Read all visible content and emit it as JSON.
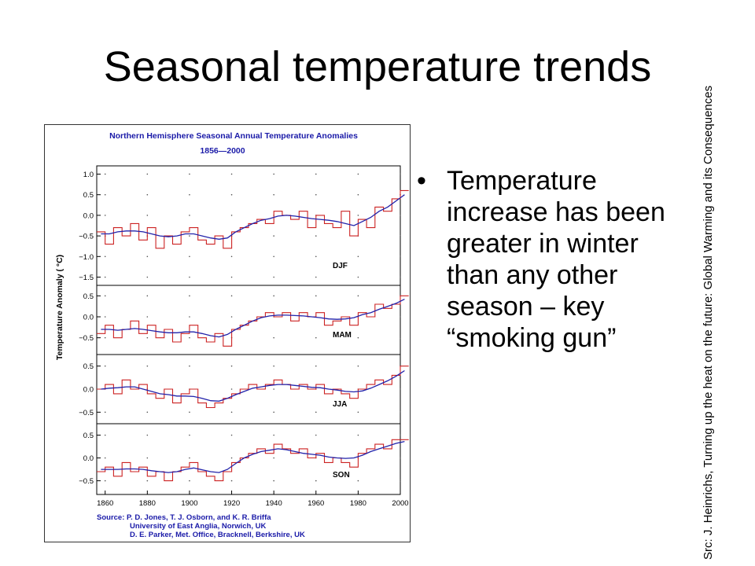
{
  "slide": {
    "title": "Seasonal temperature trends",
    "bullet_symbol": "•",
    "bullet": "Temperature increase has been greater in winter than any other season – key “smoking gun”",
    "source_note": "Src: J. Heinrichs, Turning up the heat on the future: Global Warming and its Consequences"
  },
  "chart_data": {
    "type": "line",
    "title": "Northern Hemisphere Seasonal Annual Temperature Anomalies",
    "subtitle": "1856—2000",
    "ylabel": "Temperature Anomaly ( °C)",
    "xlabel": "",
    "xlim": [
      1856,
      2000
    ],
    "x_ticks": [
      1860,
      1880,
      1900,
      1920,
      1940,
      1960,
      1980,
      2000
    ],
    "x_tick_labels": [
      "1860",
      "1880",
      "1900",
      "1920",
      "1940",
      "1960",
      "1980",
      "2000"
    ],
    "source": [
      "Source:  P. D. Jones,  T. J. Osborn,  and  K. R. Briffa",
      "University of East Anglia, Norwich, UK",
      "D. E. Parker, Met. Office, Bracknell, Berkshire, UK"
    ],
    "colors": {
      "annual_steps": "#cc2222",
      "smoothed": "#2222aa",
      "title": "#1a1aa8",
      "source": "#1a1aa8"
    },
    "panels": [
      {
        "label": "DJF",
        "ylim": [
          -1.7,
          1.2
        ],
        "y_ticks": [
          1.0,
          0.5,
          0.0,
          -0.5,
          -1.0,
          -1.5
        ],
        "y_tick_labels": [
          "1.0",
          "0.5",
          "0.0",
          "−0.5",
          "−1.0",
          "−1.5"
        ],
        "x": [
          1856,
          1860,
          1864,
          1868,
          1872,
          1876,
          1880,
          1884,
          1888,
          1892,
          1896,
          1900,
          1904,
          1908,
          1912,
          1916,
          1920,
          1924,
          1928,
          1932,
          1936,
          1940,
          1944,
          1948,
          1952,
          1956,
          1960,
          1964,
          1968,
          1972,
          1976,
          1980,
          1984,
          1988,
          1992,
          1996,
          2000
        ],
        "annual": [
          -0.4,
          -0.7,
          -0.3,
          -0.5,
          -0.2,
          -0.6,
          -0.3,
          -0.8,
          -0.5,
          -0.7,
          -0.4,
          -0.3,
          -0.6,
          -0.7,
          -0.5,
          -0.8,
          -0.4,
          -0.3,
          -0.2,
          -0.1,
          -0.2,
          0.1,
          0.0,
          -0.1,
          0.1,
          -0.3,
          0.0,
          -0.2,
          -0.3,
          0.1,
          -0.5,
          -0.1,
          -0.3,
          0.2,
          0.1,
          0.4,
          0.6
        ],
        "smoothed": [
          -0.45,
          -0.45,
          -0.4,
          -0.38,
          -0.38,
          -0.4,
          -0.45,
          -0.5,
          -0.52,
          -0.5,
          -0.45,
          -0.45,
          -0.5,
          -0.55,
          -0.58,
          -0.55,
          -0.4,
          -0.3,
          -0.2,
          -0.12,
          -0.08,
          -0.02,
          0.0,
          -0.02,
          -0.05,
          -0.08,
          -0.1,
          -0.12,
          -0.15,
          -0.2,
          -0.25,
          -0.15,
          -0.05,
          0.1,
          0.2,
          0.35,
          0.5
        ]
      },
      {
        "label": "MAM",
        "ylim": [
          -0.9,
          0.75
        ],
        "y_ticks": [
          0.5,
          0.0,
          -0.5
        ],
        "y_tick_labels": [
          "0.5",
          "0.0",
          "−0.5"
        ],
        "x": [
          1856,
          1860,
          1864,
          1868,
          1872,
          1876,
          1880,
          1884,
          1888,
          1892,
          1896,
          1900,
          1904,
          1908,
          1912,
          1916,
          1920,
          1924,
          1928,
          1932,
          1936,
          1940,
          1944,
          1948,
          1952,
          1956,
          1960,
          1964,
          1968,
          1972,
          1976,
          1980,
          1984,
          1988,
          1992,
          1996,
          2000
        ],
        "annual": [
          -0.4,
          -0.2,
          -0.5,
          -0.3,
          -0.1,
          -0.4,
          -0.2,
          -0.5,
          -0.3,
          -0.6,
          -0.4,
          -0.2,
          -0.5,
          -0.6,
          -0.4,
          -0.7,
          -0.3,
          -0.2,
          -0.1,
          0.0,
          0.1,
          0.0,
          0.1,
          -0.1,
          0.1,
          0.0,
          0.1,
          -0.2,
          -0.1,
          0.0,
          -0.2,
          0.1,
          0.0,
          0.3,
          0.2,
          0.3,
          0.5
        ],
        "smoothed": [
          -0.3,
          -0.3,
          -0.32,
          -0.3,
          -0.28,
          -0.3,
          -0.33,
          -0.36,
          -0.38,
          -0.38,
          -0.36,
          -0.36,
          -0.4,
          -0.45,
          -0.48,
          -0.42,
          -0.3,
          -0.2,
          -0.1,
          -0.02,
          0.02,
          0.04,
          0.04,
          0.03,
          0.02,
          0.0,
          -0.02,
          -0.05,
          -0.06,
          -0.05,
          -0.02,
          0.05,
          0.1,
          0.18,
          0.25,
          0.32,
          0.42
        ]
      },
      {
        "label": "JJA",
        "ylim": [
          -0.75,
          0.75
        ],
        "y_ticks": [
          0.5,
          0.0,
          -0.5
        ],
        "y_tick_labels": [
          "0.5",
          "0.0",
          "−0.5"
        ],
        "x": [
          1856,
          1860,
          1864,
          1868,
          1872,
          1876,
          1880,
          1884,
          1888,
          1892,
          1896,
          1900,
          1904,
          1908,
          1912,
          1916,
          1920,
          1924,
          1928,
          1932,
          1936,
          1940,
          1944,
          1948,
          1952,
          1956,
          1960,
          1964,
          1968,
          1972,
          1976,
          1980,
          1984,
          1988,
          1992,
          1996,
          2000
        ],
        "annual": [
          0.0,
          0.1,
          -0.1,
          0.2,
          0.0,
          0.1,
          -0.1,
          -0.2,
          0.0,
          -0.3,
          -0.1,
          0.0,
          -0.3,
          -0.4,
          -0.3,
          -0.2,
          -0.1,
          0.0,
          0.1,
          0.0,
          0.1,
          0.2,
          0.1,
          0.0,
          0.1,
          0.0,
          0.1,
          -0.1,
          0.0,
          -0.1,
          -0.2,
          0.0,
          0.1,
          0.2,
          0.1,
          0.3,
          0.5
        ],
        "smoothed": [
          0.0,
          0.02,
          0.03,
          0.05,
          0.05,
          0.0,
          -0.05,
          -0.1,
          -0.12,
          -0.15,
          -0.15,
          -0.16,
          -0.2,
          -0.25,
          -0.26,
          -0.2,
          -0.12,
          -0.05,
          0.02,
          0.05,
          0.08,
          0.1,
          0.1,
          0.08,
          0.06,
          0.04,
          0.03,
          0.0,
          -0.02,
          -0.05,
          -0.06,
          -0.04,
          0.02,
          0.1,
          0.18,
          0.28,
          0.4
        ]
      },
      {
        "label": "SON",
        "ylim": [
          -0.8,
          0.75
        ],
        "y_ticks": [
          0.5,
          0.0,
          -0.5
        ],
        "y_tick_labels": [
          "0.5",
          "0.0",
          "−0.5"
        ],
        "x": [
          1856,
          1860,
          1864,
          1868,
          1872,
          1876,
          1880,
          1884,
          1888,
          1892,
          1896,
          1900,
          1904,
          1908,
          1912,
          1916,
          1920,
          1924,
          1928,
          1932,
          1936,
          1940,
          1944,
          1948,
          1952,
          1956,
          1960,
          1964,
          1968,
          1972,
          1976,
          1980,
          1984,
          1988,
          1992,
          1996,
          2000
        ],
        "annual": [
          -0.3,
          -0.2,
          -0.4,
          -0.1,
          -0.3,
          -0.2,
          -0.4,
          -0.3,
          -0.5,
          -0.3,
          -0.2,
          -0.1,
          -0.3,
          -0.4,
          -0.5,
          -0.3,
          -0.1,
          0.0,
          0.1,
          0.2,
          0.1,
          0.3,
          0.2,
          0.1,
          0.2,
          0.0,
          0.1,
          -0.1,
          0.0,
          -0.1,
          -0.2,
          0.1,
          0.2,
          0.3,
          0.2,
          0.4,
          0.4
        ],
        "smoothed": [
          -0.25,
          -0.25,
          -0.25,
          -0.24,
          -0.24,
          -0.25,
          -0.28,
          -0.3,
          -0.32,
          -0.3,
          -0.25,
          -0.22,
          -0.26,
          -0.3,
          -0.32,
          -0.25,
          -0.12,
          0.0,
          0.08,
          0.14,
          0.17,
          0.2,
          0.18,
          0.14,
          0.1,
          0.08,
          0.06,
          0.02,
          0.0,
          -0.01,
          0.0,
          0.06,
          0.14,
          0.2,
          0.26,
          0.32,
          0.36
        ]
      }
    ]
  }
}
